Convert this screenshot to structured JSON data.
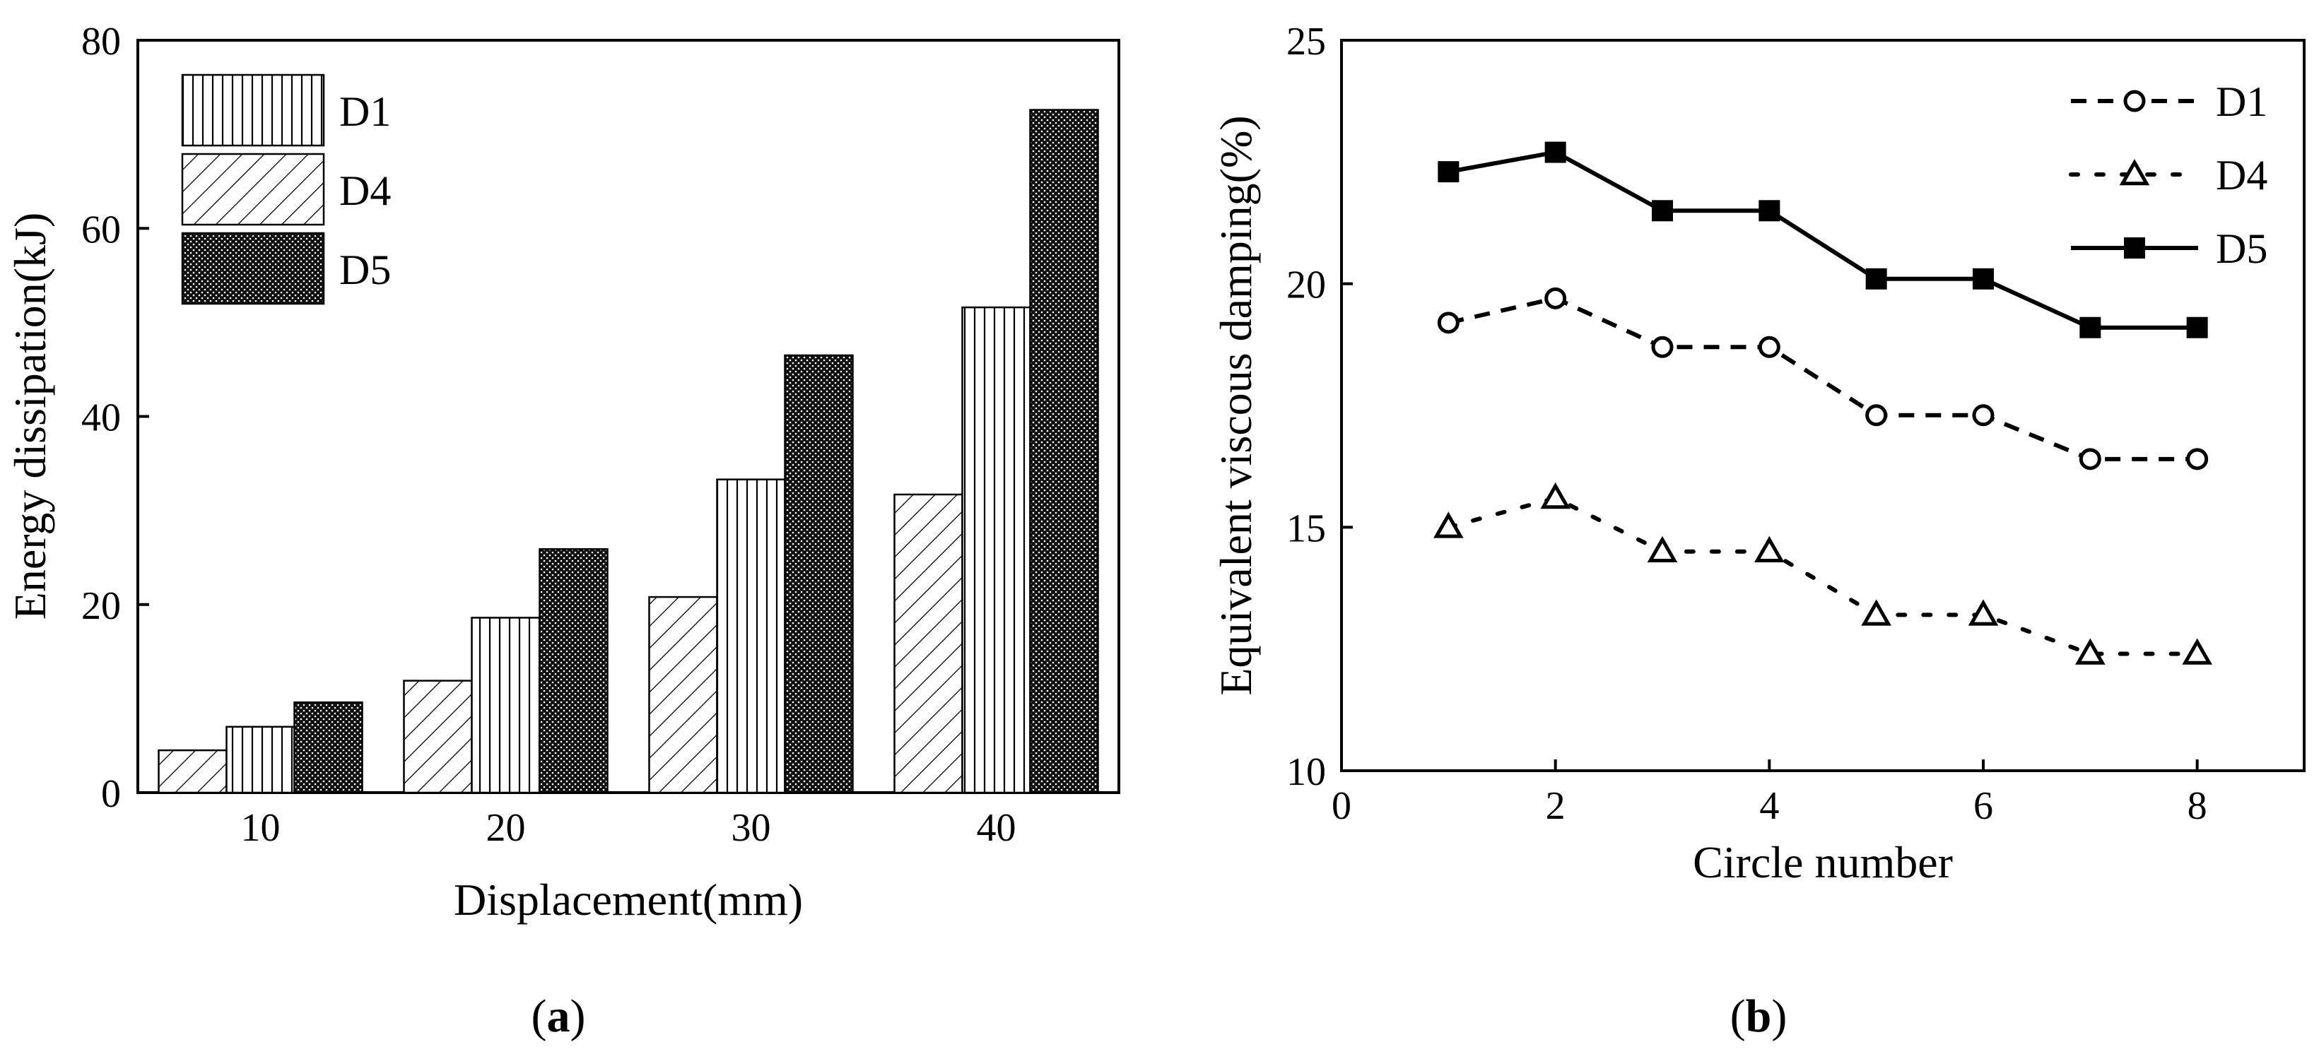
{
  "chart_data": [
    {
      "type": "bar",
      "panel_label": "a",
      "xlabel": "Displacement(mm)",
      "ylabel": "Energy dissipation(kJ)",
      "categories": [
        "10",
        "20",
        "30",
        "40"
      ],
      "ylim": [
        0,
        80
      ],
      "yticks": [
        0,
        20,
        40,
        60,
        80
      ],
      "bar_order": [
        "D4",
        "D1",
        "D5"
      ],
      "legend_position": "top-left",
      "series": [
        {
          "name": "D1",
          "pattern": "vertical-lines",
          "values": [
            7.0,
            18.6,
            33.3,
            51.6
          ]
        },
        {
          "name": "D4",
          "pattern": "diagonal-hatch",
          "values": [
            4.5,
            11.9,
            20.8,
            31.7
          ]
        },
        {
          "name": "D5",
          "pattern": "dense-dots",
          "values": [
            9.6,
            25.9,
            46.5,
            72.6
          ]
        }
      ]
    },
    {
      "type": "line",
      "panel_label": "b",
      "xlabel": "Circle number",
      "ylabel": "Equivalent viscous damping(%)",
      "xlim": [
        0,
        9
      ],
      "xticks": [
        0,
        2,
        4,
        6,
        8
      ],
      "ylim": [
        10,
        25
      ],
      "yticks": [
        10,
        15,
        20,
        25
      ],
      "legend_position": "top-right",
      "x": [
        1,
        2,
        3,
        4,
        5,
        6,
        7,
        8
      ],
      "series": [
        {
          "name": "D1",
          "marker": "open-circle",
          "line": "dashed",
          "values": [
            19.2,
            19.7,
            18.7,
            18.7,
            17.3,
            17.3,
            16.4,
            16.4
          ]
        },
        {
          "name": "D4",
          "marker": "open-triangle",
          "line": "dotted",
          "values": [
            15.0,
            15.6,
            14.5,
            14.5,
            13.2,
            13.2,
            12.4,
            12.4
          ]
        },
        {
          "name": "D5",
          "marker": "filled-square",
          "line": "solid",
          "values": [
            22.3,
            22.7,
            21.5,
            21.5,
            20.1,
            20.1,
            19.1,
            19.1
          ]
        }
      ]
    }
  ]
}
